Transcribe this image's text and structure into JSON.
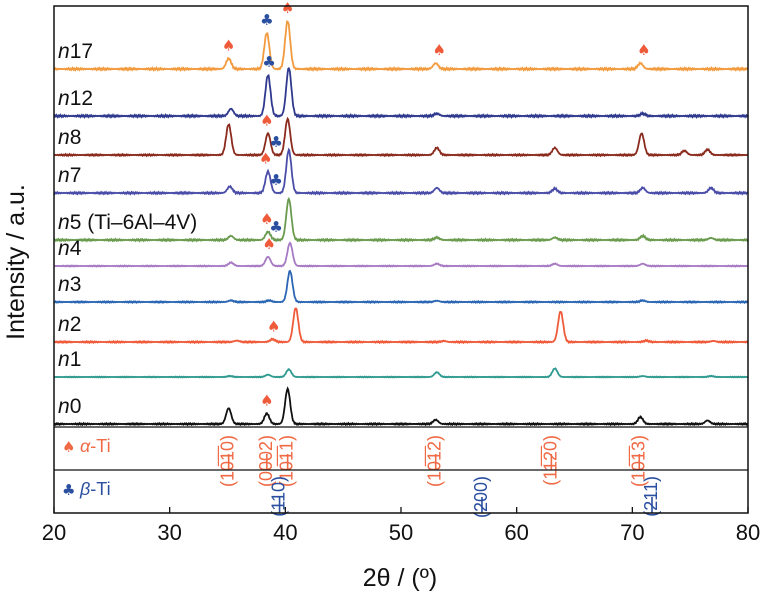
{
  "chart_data": {
    "type": "line",
    "xlabel": "2θ / (º)",
    "ylabel": "Intensity / a.u.",
    "xlim": [
      20,
      80
    ],
    "xticks": [
      20,
      30,
      40,
      50,
      60,
      70,
      80
    ],
    "yticks": "none",
    "grid": false,
    "legend": "none",
    "series": [
      {
        "name": "n17",
        "label_main": "n",
        "label_rest": "17",
        "color": "#f29a3e",
        "peaks": [
          [
            35.1,
            0.22
          ],
          [
            38.4,
            0.75
          ],
          [
            40.2,
            1.0
          ],
          [
            53.0,
            0.12
          ],
          [
            70.7,
            0.12
          ]
        ]
      },
      {
        "name": "n12",
        "label_main": "n",
        "label_rest": "12",
        "color": "#2f3a8f",
        "peaks": [
          [
            35.3,
            0.15
          ],
          [
            38.5,
            0.85
          ],
          [
            40.3,
            1.0
          ],
          [
            53.1,
            0.05
          ],
          [
            70.9,
            0.05
          ]
        ]
      },
      {
        "name": "n8",
        "label_main": "n",
        "label_rest": "8",
        "color": "#8b2b1e",
        "peaks": [
          [
            35.1,
            0.85
          ],
          [
            38.5,
            0.6
          ],
          [
            40.2,
            1.0
          ],
          [
            53.1,
            0.2
          ],
          [
            63.3,
            0.2
          ],
          [
            70.8,
            0.6
          ],
          [
            74.5,
            0.12
          ],
          [
            76.5,
            0.15
          ]
        ]
      },
      {
        "name": "n7",
        "label_main": "n",
        "label_rest": "7",
        "color": "#4a4da8",
        "peaks": [
          [
            35.2,
            0.15
          ],
          [
            38.5,
            0.5
          ],
          [
            40.3,
            1.0
          ],
          [
            53.1,
            0.12
          ],
          [
            63.3,
            0.1
          ],
          [
            70.9,
            0.12
          ],
          [
            76.8,
            0.12
          ]
        ]
      },
      {
        "name": "n5",
        "label_main": "n",
        "label_rest": "5 (Ti–6Al–4V)",
        "color": "#6a9b4e",
        "peaks": [
          [
            35.3,
            0.1
          ],
          [
            38.5,
            0.2
          ],
          [
            40.3,
            1.0
          ],
          [
            53.1,
            0.06
          ],
          [
            63.3,
            0.06
          ],
          [
            70.9,
            0.1
          ],
          [
            76.8,
            0.05
          ]
        ]
      },
      {
        "name": "n4",
        "label_main": "n",
        "label_rest": "4",
        "color": "#a77ac4",
        "peaks": [
          [
            35.3,
            0.15
          ],
          [
            38.5,
            0.4
          ],
          [
            40.4,
            1.0
          ],
          [
            53.1,
            0.1
          ],
          [
            63.3,
            0.1
          ],
          [
            70.9,
            0.1
          ]
        ]
      },
      {
        "name": "n3",
        "label_main": "n",
        "label_rest": "3",
        "color": "#2a66b3",
        "peaks": [
          [
            35.3,
            0.05
          ],
          [
            38.6,
            0.05
          ],
          [
            40.4,
            1.0
          ],
          [
            53.1,
            0.04
          ],
          [
            70.9,
            0.05
          ]
        ]
      },
      {
        "name": "n2",
        "label_main": "n",
        "label_rest": "2",
        "color": "#ef5b3a",
        "peaks": [
          [
            35.8,
            0.04
          ],
          [
            38.9,
            0.08
          ],
          [
            40.9,
            1.0
          ],
          [
            53.7,
            0.03
          ],
          [
            63.8,
            0.9
          ],
          [
            71.2,
            0.04
          ],
          [
            77.0,
            0.03
          ]
        ]
      },
      {
        "name": "n1",
        "label_main": "n",
        "label_rest": "1",
        "color": "#2f9a8f",
        "peaks": [
          [
            35.2,
            0.05
          ],
          [
            38.5,
            0.12
          ],
          [
            40.3,
            0.4
          ],
          [
            53.1,
            0.25
          ],
          [
            63.3,
            0.45
          ],
          [
            70.9,
            0.05
          ],
          [
            76.8,
            0.05
          ]
        ]
      },
      {
        "name": "n0",
        "label_main": "n",
        "label_rest": "0",
        "color": "#111111",
        "peaks": [
          [
            35.1,
            0.45
          ],
          [
            38.4,
            0.3
          ],
          [
            40.2,
            1.0
          ],
          [
            53.0,
            0.12
          ],
          [
            70.7,
            0.2
          ],
          [
            76.5,
            0.1
          ]
        ]
      }
    ],
    "phase_markers": [
      {
        "series": "n17",
        "symbol": "♠",
        "phase": "alpha",
        "x": 35.1
      },
      {
        "series": "n17",
        "symbol": "♣",
        "phase": "beta",
        "x": 38.4
      },
      {
        "series": "n17",
        "symbol": "♠",
        "phase": "alpha",
        "x": 40.2
      },
      {
        "series": "n17",
        "symbol": "♠",
        "phase": "alpha",
        "x": 53.3
      },
      {
        "series": "n17",
        "symbol": "♠",
        "phase": "alpha",
        "x": 71.0
      },
      {
        "series": "n12",
        "symbol": "♣",
        "phase": "beta",
        "x": 38.6
      },
      {
        "series": "n8",
        "symbol": "♠",
        "phase": "alpha",
        "x": 38.4
      },
      {
        "series": "n8",
        "symbol": "♣",
        "phase": "beta",
        "x": 39.2
      },
      {
        "series": "n7",
        "symbol": "♠",
        "phase": "alpha",
        "x": 38.3
      },
      {
        "series": "n7",
        "symbol": "♣",
        "phase": "beta",
        "x": 39.2
      },
      {
        "series": "n5",
        "symbol": "♠",
        "phase": "alpha",
        "x": 38.4
      },
      {
        "series": "n5",
        "symbol": "♣",
        "phase": "beta",
        "x": 39.2
      },
      {
        "series": "n4",
        "symbol": "♠",
        "phase": "alpha",
        "x": 38.6
      },
      {
        "series": "n2",
        "symbol": "♠",
        "phase": "alpha",
        "x": 39.0
      },
      {
        "series": "n0",
        "symbol": "♠",
        "phase": "alpha",
        "x": 38.4
      }
    ],
    "reference_panels": [
      {
        "symbol": "♠",
        "phase_prefix": "α",
        "phase_suffix": "-Ti",
        "color": "#ef6a45",
        "reflections": [
          {
            "hkl": "(10̅1̅0)",
            "x": 35.1
          },
          {
            "hkl": "(0002)",
            "x": 38.4
          },
          {
            "hkl": "(10̅1̅1)",
            "x": 40.2
          },
          {
            "hkl": "(10̅1̅2)",
            "x": 53.0
          },
          {
            "hkl": "(11̅2̅0)",
            "x": 63.0
          },
          {
            "hkl": "(10̅1̅3)",
            "x": 70.6
          }
        ]
      },
      {
        "symbol": "♣",
        "phase_prefix": "β",
        "phase_suffix": "-Ti",
        "color": "#2a4fa0",
        "reflections": [
          {
            "hkl": "(110)",
            "x": 39.5
          },
          {
            "hkl": "(200)",
            "x": 57.0
          },
          {
            "hkl": "(211)",
            "x": 71.7
          }
        ]
      }
    ]
  }
}
